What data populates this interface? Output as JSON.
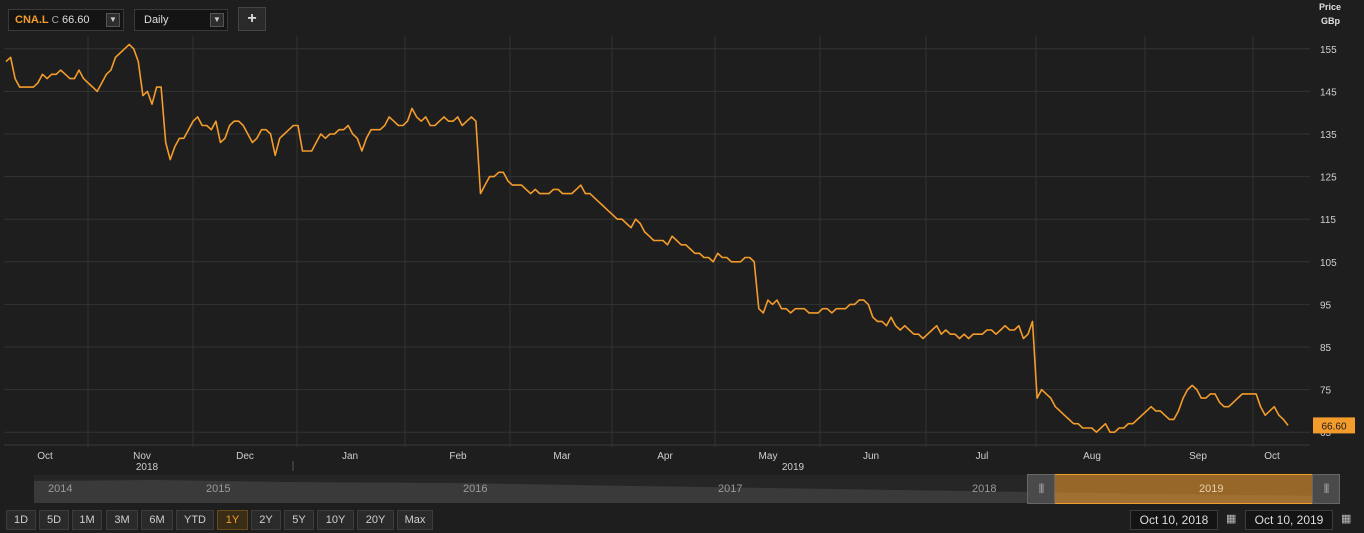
{
  "toolbar": {
    "ticker": "CNA.L",
    "last_prefix": "C",
    "last_value": "66.60",
    "interval": "Daily",
    "add_label": "+"
  },
  "axis": {
    "price_label": "Price",
    "unit_label": "GBp"
  },
  "last_price_tag": "66.60",
  "navigator": {
    "years": [
      "2014",
      "2015",
      "2016",
      "2017",
      "2018",
      "2019"
    ]
  },
  "range_buttons": [
    "1D",
    "5D",
    "1M",
    "3M",
    "6M",
    "YTD",
    "1Y",
    "2Y",
    "5Y",
    "10Y",
    "20Y",
    "Max"
  ],
  "active_range": "1Y",
  "date_from": "Oct 10, 2018",
  "date_to": "Oct 10, 2019",
  "colors": {
    "line": "#f39c2b",
    "background": "#1e1e1e",
    "grid": "#333333"
  },
  "chart_data": {
    "type": "line",
    "series": [
      {
        "name": "CNA.L",
        "values": [
          152,
          153,
          148,
          146,
          146,
          146,
          146,
          147,
          149,
          148,
          149,
          149,
          150,
          149,
          148,
          148,
          150,
          148,
          147,
          146,
          145,
          147,
          149,
          150,
          153,
          154,
          155,
          156,
          155,
          152,
          144,
          145,
          142,
          146,
          146,
          133,
          129,
          132,
          134,
          134,
          136,
          138,
          139,
          137,
          137,
          136,
          138,
          133,
          134,
          137,
          138,
          138,
          137,
          135,
          133,
          134,
          136,
          136,
          135,
          130,
          134,
          135,
          136,
          137,
          137,
          131,
          131,
          131,
          133,
          135,
          134,
          135,
          135,
          136,
          136,
          137,
          135,
          134,
          131,
          134,
          136,
          136,
          136,
          137,
          139,
          138,
          137,
          137,
          138,
          141,
          139,
          138,
          139,
          137,
          137,
          138,
          139,
          138,
          138,
          139,
          137,
          138,
          139,
          138,
          121,
          123,
          125,
          125,
          126,
          126,
          124,
          123,
          123,
          123,
          122,
          121,
          122,
          121,
          121,
          121,
          122,
          122,
          121,
          121,
          121,
          122,
          123,
          121,
          121,
          120,
          119,
          118,
          117,
          116,
          115,
          115,
          114,
          113,
          115,
          114,
          112,
          111,
          110,
          110,
          110,
          109,
          111,
          110,
          109,
          109,
          108,
          107,
          107,
          106,
          106,
          105,
          107,
          106,
          106,
          105,
          105,
          105,
          106,
          106,
          105,
          94,
          93,
          96,
          95,
          96,
          94,
          94,
          93,
          94,
          94,
          94,
          93,
          93,
          93,
          94,
          94,
          93,
          94,
          94,
          94,
          95,
          95,
          96,
          96,
          95,
          92,
          91,
          91,
          90,
          92,
          90,
          89,
          90,
          89,
          88,
          88,
          87,
          88,
          89,
          90,
          88,
          89,
          88,
          88,
          87,
          88,
          87,
          88,
          88,
          88,
          89,
          89,
          88,
          89,
          90,
          89,
          89,
          90,
          87,
          88,
          91,
          73,
          75,
          74,
          73,
          71,
          70,
          69,
          68,
          67,
          67,
          66,
          66,
          66,
          65,
          66,
          67,
          65,
          65,
          66,
          66,
          67,
          67,
          68,
          69,
          70,
          71,
          70,
          70,
          69,
          68,
          68,
          70,
          73,
          75,
          76,
          75,
          73,
          73,
          74,
          74,
          72,
          71,
          71,
          72,
          73,
          74,
          74,
          74,
          74,
          71,
          69,
          70,
          71,
          69,
          68,
          66.6
        ]
      }
    ],
    "x_tick_labels": [
      "Oct",
      "Nov",
      "Dec",
      "Jan",
      "Feb",
      "Mar",
      "Apr",
      "May",
      "Jun",
      "Jul",
      "Aug",
      "Sep",
      "Oct"
    ],
    "x_year_labels": [
      "2018",
      "2019"
    ],
    "y_ticks": [
      65,
      75,
      85,
      95,
      105,
      115,
      125,
      135,
      145,
      155
    ],
    "ylim": [
      62,
      158
    ],
    "ylabel": "Price GBp",
    "grid": true
  }
}
